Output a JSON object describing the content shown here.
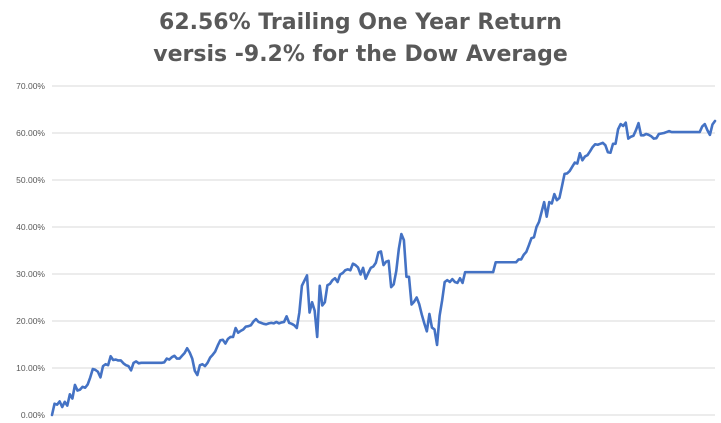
{
  "chart_data": {
    "type": "line",
    "title_lines": [
      "62.56% Trailing One Year Return",
      "versis -9.2% for the Dow Average"
    ],
    "xlabel": "",
    "ylabel": "",
    "ylim": [
      0,
      70
    ],
    "y_ticks": [
      {
        "value": 0,
        "label": "0.00%"
      },
      {
        "value": 10,
        "label": "10.00%"
      },
      {
        "value": 20,
        "label": "20.00%"
      },
      {
        "value": 30,
        "label": "30.00%"
      },
      {
        "value": 40,
        "label": "40.00%"
      },
      {
        "value": 50,
        "label": "50.00%"
      },
      {
        "value": 60,
        "label": "60.00%"
      },
      {
        "value": 70,
        "label": "70.00%"
      }
    ],
    "grid": true,
    "legend": "none",
    "line_color": "#4472c4",
    "gridline_color": "#d9d9d9",
    "series": [
      {
        "values": [
          0.0,
          2.4,
          2.2,
          2.9,
          1.7,
          2.8,
          2.0,
          4.4,
          3.5,
          6.4,
          5.2,
          5.4,
          6.0,
          5.8,
          6.5,
          8.0,
          9.8,
          9.6,
          9.2,
          8.0,
          10.4,
          10.8,
          10.6,
          12.5,
          11.7,
          11.8,
          11.6,
          11.6,
          11.0,
          10.6,
          10.4,
          9.5,
          11.1,
          11.4,
          11.0,
          11.1,
          11.1,
          11.1,
          11.1,
          11.1,
          11.1,
          11.1,
          11.1,
          11.1,
          11.2,
          12.0,
          11.8,
          12.3,
          12.6,
          12.0,
          12.0,
          12.6,
          13.2,
          14.2,
          13.3,
          12.0,
          9.4,
          8.5,
          10.6,
          10.8,
          10.4,
          11.1,
          12.2,
          12.8,
          13.5,
          14.8,
          15.9,
          16.0,
          15.2,
          16.2,
          16.6,
          16.6,
          18.5,
          17.5,
          17.9,
          18.2,
          18.8,
          18.9,
          19.1,
          19.9,
          20.4,
          19.8,
          19.6,
          19.4,
          19.3,
          19.5,
          19.6,
          19.5,
          19.8,
          19.5,
          19.7,
          19.8,
          21.0,
          19.6,
          19.4,
          19.1,
          18.5,
          21.8,
          27.5,
          28.6,
          29.7,
          21.8,
          24.0,
          22.2,
          16.6,
          27.5,
          23.3,
          24.0,
          27.6,
          27.9,
          28.7,
          29.1,
          28.3,
          29.9,
          30.2,
          30.8,
          31.0,
          30.8,
          32.2,
          31.9,
          31.4,
          29.9,
          31.3,
          29.0,
          30.2,
          31.3,
          31.6,
          32.4,
          34.6,
          34.8,
          31.9,
          32.6,
          32.8,
          27.2,
          27.8,
          30.6,
          35.3,
          38.5,
          37.2,
          29.4,
          29.4,
          23.5,
          24.1,
          25.0,
          23.6,
          21.4,
          19.5,
          17.8,
          21.5,
          18.6,
          18.2,
          14.9,
          21.1,
          24.4,
          28.3,
          28.7,
          28.3,
          28.9,
          28.3,
          28.1,
          29.1,
          28.1,
          30.4,
          30.4,
          30.4,
          30.4,
          30.4,
          30.4,
          30.4,
          30.4,
          30.4,
          30.4,
          30.4,
          30.4,
          32.5,
          32.5,
          32.5,
          32.5,
          32.5,
          32.5,
          32.5,
          32.5,
          32.5,
          33.1,
          33.1,
          34.1,
          34.7,
          36.1,
          37.6,
          37.8,
          40.0,
          41.1,
          43.2,
          45.3,
          42.2,
          45.3,
          45.0,
          47.0,
          45.7,
          46.2,
          48.7,
          51.3,
          51.4,
          51.9,
          52.8,
          53.7,
          53.5,
          55.7,
          54.2,
          55.0,
          55.3,
          56.1,
          57.0,
          57.6,
          57.5,
          57.7,
          57.9,
          57.4,
          55.9,
          55.8,
          57.7,
          57.7,
          60.8,
          61.9,
          61.5,
          62.2,
          58.8,
          59.2,
          59.4,
          60.6,
          62.1,
          59.5,
          59.5,
          59.8,
          59.6,
          59.3,
          58.8,
          58.9,
          59.8,
          59.9,
          60.0,
          60.2,
          60.4,
          60.2,
          60.2,
          60.2,
          60.2,
          60.2,
          60.2,
          60.2,
          60.2,
          60.2,
          60.2,
          60.2,
          60.2,
          61.4,
          61.9,
          60.6,
          59.6,
          61.8,
          62.56
        ]
      }
    ]
  }
}
